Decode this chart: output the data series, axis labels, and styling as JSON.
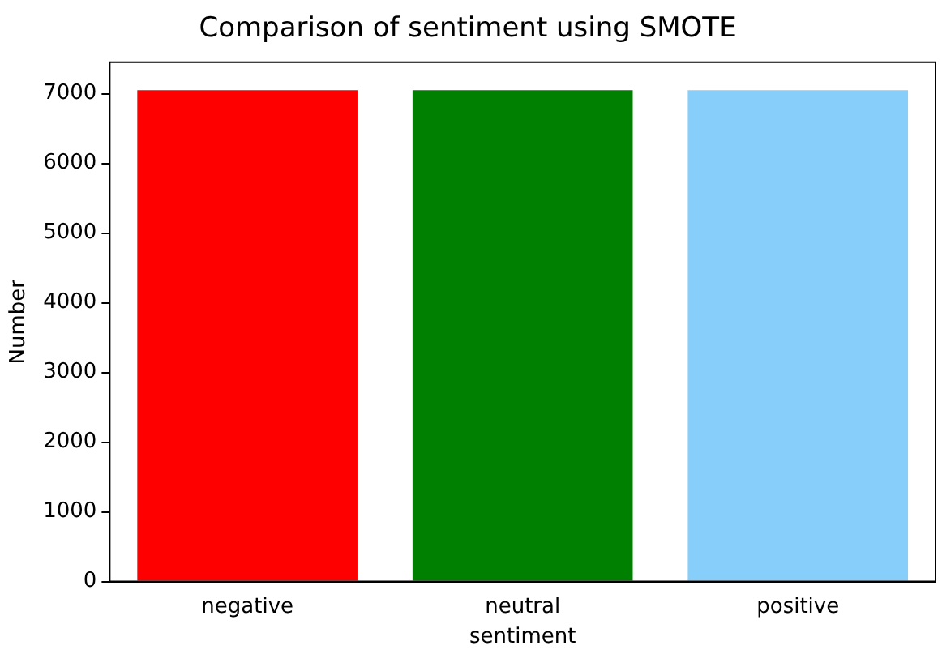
{
  "chart_data": {
    "type": "bar",
    "title": "Comparison of sentiment using SMOTE",
    "xlabel": "sentiment",
    "ylabel": "Number",
    "categories": [
      "negative",
      "neutral",
      "positive"
    ],
    "values": [
      7050,
      7050,
      7050
    ],
    "colors": [
      "#ff0000",
      "#008000",
      "#87cefa"
    ],
    "ylim": [
      0,
      7450
    ],
    "yticks": [
      0,
      1000,
      2000,
      3000,
      4000,
      5000,
      6000,
      7000
    ],
    "grid": false
  }
}
